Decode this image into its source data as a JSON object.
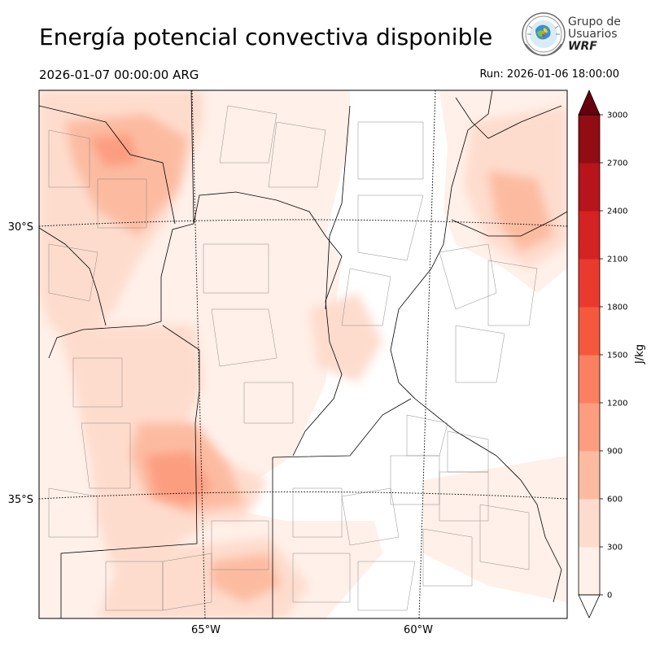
{
  "header": {
    "title": "Energía potencial convectiva disponible",
    "valid_time": "2026-01-07 00:00:00 ARG",
    "run_time": "Run: 2026-01-06 18:00:00"
  },
  "logo": {
    "line1": "Grupo de",
    "line2": "Usuarios",
    "line3": "WRF"
  },
  "map": {
    "latitude_labels": [
      "30°S",
      "35°S"
    ],
    "longitude_labels": [
      "65°W",
      "60°W"
    ]
  },
  "colorbar": {
    "unit": "J/kg",
    "ticks": [
      "0",
      "300",
      "600",
      "900",
      "1200",
      "1500",
      "1800",
      "2100",
      "2400",
      "2700",
      "3000"
    ],
    "colors": [
      "#fff0e9",
      "#fedccd",
      "#fcbba1",
      "#fc9d80",
      "#fb8061",
      "#f6583e",
      "#ea3a2e",
      "#d42322",
      "#b8141b",
      "#920c13"
    ],
    "over_color": "#67000d",
    "under_color": "#ffffff"
  }
}
